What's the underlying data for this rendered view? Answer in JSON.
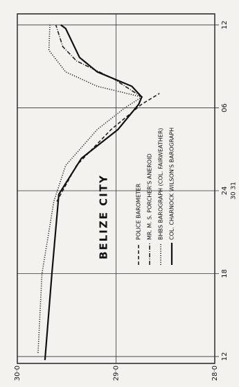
{
  "chart_data": {
    "type": "line",
    "title": "BELIZE CITY",
    "annotation": "30 31",
    "x_label_anchor": null,
    "xlim": [
      11.5,
      36.8
    ],
    "xticks": [
      12,
      18,
      24,
      {
        "value": 30,
        "label": "06"
      },
      {
        "value": 36,
        "label": "12"
      }
    ],
    "ylim": [
      30.0,
      28.0
    ],
    "yticks": [
      {
        "value": 30,
        "label": "30·0"
      },
      {
        "value": 29,
        "label": "29·0"
      },
      {
        "value": 28,
        "label": "28·0"
      }
    ],
    "grid": true,
    "series": [
      {
        "name": "POLICE BAROMETER",
        "color": "#222",
        "style": "dashed",
        "x": [
          23.22,
          25.83,
          28.43,
          30.26,
          31.04
        ],
        "values": [
          29.6,
          29.4,
          29.05,
          28.74,
          28.56
        ]
      },
      {
        "name": "MR. M. S. PORCHER'S ANEROID",
        "color": "#222",
        "style": "dashdot",
        "x": [
          30.78,
          32.08,
          33.39,
          34.43,
          36.0
        ],
        "values": [
          28.74,
          29.02,
          29.4,
          29.54,
          29.61
        ]
      },
      {
        "name": "BHBS BAROGRAPH (COL. FAIRWEATHER)",
        "color": "#222",
        "style": "dotted",
        "x": [
          12.26,
          18.0,
          23.22,
          25.83,
          28.43,
          30.0,
          30.78,
          31.56,
          32.6,
          34.17,
          36.0
        ],
        "values": [
          29.79,
          29.75,
          29.63,
          29.51,
          29.19,
          28.91,
          28.74,
          29.19,
          29.51,
          29.68,
          29.67
        ]
      },
      {
        "name": "COL. CHARNOCK WILSON'S BAROGRAPH",
        "color": "#111",
        "style": "solid",
        "x": [
          11.74,
          18.0,
          23.74,
          26.35,
          28.43,
          30.26,
          30.78,
          31.56,
          32.6,
          33.65,
          35.74,
          36.0
        ],
        "values": [
          29.72,
          29.65,
          29.58,
          29.35,
          28.98,
          28.77,
          28.74,
          28.84,
          29.19,
          29.37,
          29.51,
          29.56
        ]
      }
    ]
  }
}
